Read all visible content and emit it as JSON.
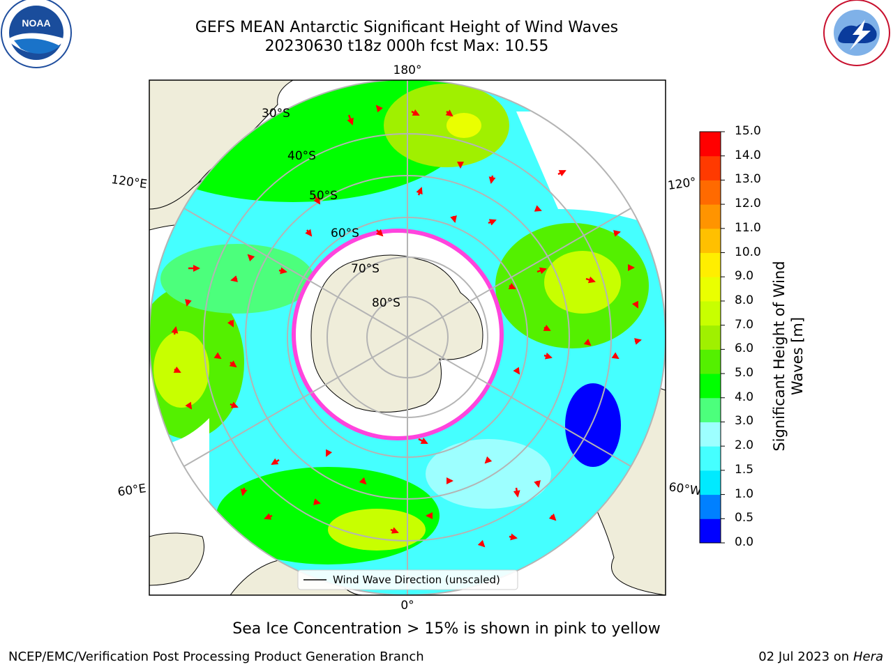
{
  "title_line1": "GEFS MEAN Antarctic Significant Height of Wind Waves",
  "title_line2": "20230630 t18z 000h fcst   Max: 10.55",
  "map": {
    "longitude_labels": [
      "180°",
      "120°E",
      "120°",
      "60°E",
      "60°W",
      "0°"
    ],
    "latitude_labels": [
      "30°S",
      "40°S",
      "50°S",
      "60°S",
      "70°S",
      "80°S"
    ],
    "legend_label": "Wind Wave Direction (unscaled)",
    "arrow_color": "#ff0000",
    "land_color": "#efedda",
    "sea_ice_color": "#ff44dd"
  },
  "colorbar": {
    "label": "Significant Height of Wind Waves [m]",
    "ticks": [
      "0.0",
      "0.5",
      "1.0",
      "1.5",
      "2.0",
      "3.0",
      "4.0",
      "5.0",
      "6.0",
      "7.0",
      "8.0",
      "9.0",
      "10.0",
      "11.0",
      "12.0",
      "13.0",
      "14.0",
      "15.0"
    ],
    "colors": [
      "#0000ff",
      "#0080ff",
      "#00eaff",
      "#45ffff",
      "#9dffff",
      "#4cff7c",
      "#00ff00",
      "#54f000",
      "#a0f000",
      "#c8ff00",
      "#eaff00",
      "#ffee00",
      "#ffc000",
      "#ff9400",
      "#ff6a00",
      "#ff3a00",
      "#ff0000"
    ]
  },
  "footer_note": "Sea Ice Concentration > 15% is shown in pink to yellow",
  "footer_left": "NCEP/EMC/Verification Post Processing Product Generation Branch",
  "footer_date": "02 Jul 2023 on",
  "footer_machine": "Hera"
}
